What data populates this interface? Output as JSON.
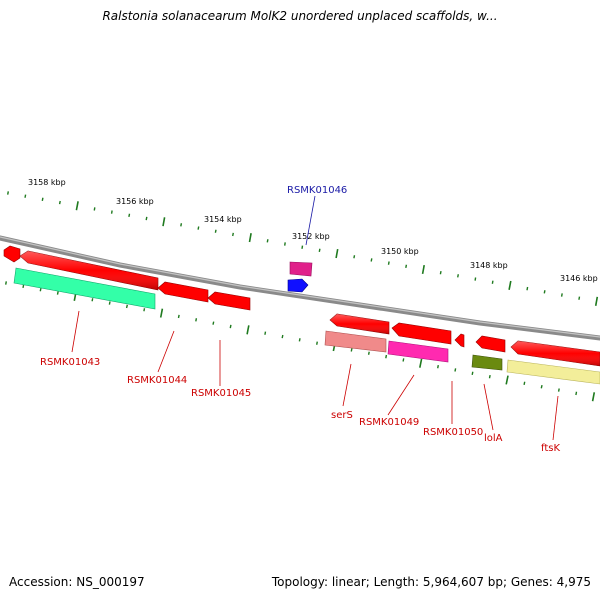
{
  "title": "Ralstonia solanacearum MolK2 unordered unplaced scaffolds, w...",
  "footer": {
    "accession": "Accession: NS_000197",
    "summary": "Topology: linear; Length: 5,964,607 bp; Genes: 4,975"
  },
  "scale_labels": [
    "3158 kbp",
    "3156 kbp",
    "3154 kbp",
    "3152 kbp",
    "3150 kbp",
    "3148 kbp",
    "3146 kbp"
  ],
  "gene_labels": [
    "RSMK01046",
    "RSMK01043",
    "RSMK01044",
    "RSMK01045",
    "serS",
    "RSMK01049",
    "RSMK01050",
    "lolA",
    "ftsK"
  ],
  "colors": {
    "backbone": "#8a8a8a",
    "tick": "#1f7a1f",
    "gene_red": "#ff0000",
    "label_red": "#cc0000",
    "label_blue": "#1a1aa6",
    "rsmk01046_feature": "#e0208a",
    "rsmk01046_arrow": "#1010ff",
    "teal_feature": "#33ffa8",
    "salmon_feature": "#f08a8a",
    "magenta_feature": "#ff2ab0",
    "olive_feature": "#6a8a10",
    "yellow_feature": "#f3ee9a"
  }
}
